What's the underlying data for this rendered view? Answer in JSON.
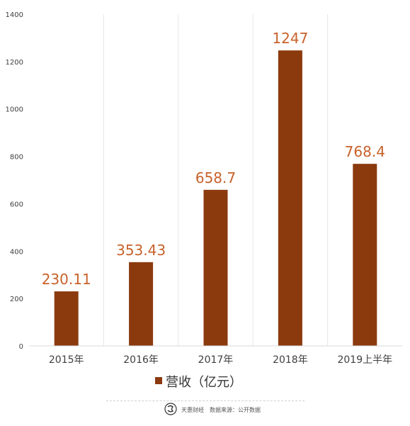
{
  "chart_data": {
    "type": "bar",
    "categories": [
      "2015年",
      "2016年",
      "2017年",
      "2018年",
      "2019上半年"
    ],
    "series": [
      {
        "name": "营收（亿元）",
        "values": [
          230.11,
          353.43,
          658.7,
          1247,
          768.4
        ]
      }
    ],
    "data_labels": [
      "230.11",
      "353.43",
      "658.7",
      "1247",
      "768.4"
    ],
    "yticks": [
      "0",
      "200",
      "400",
      "600",
      "800",
      "1000",
      "1200",
      "1400"
    ],
    "ylim": [
      0,
      1400
    ],
    "grid": "vertical separators",
    "legend": "bottom",
    "colors": {
      "bar": "#8B3A0E",
      "data_label": "#C8612A"
    }
  },
  "footer": {
    "brand": "天惠财经",
    "source": "数据来源：公开数据"
  }
}
